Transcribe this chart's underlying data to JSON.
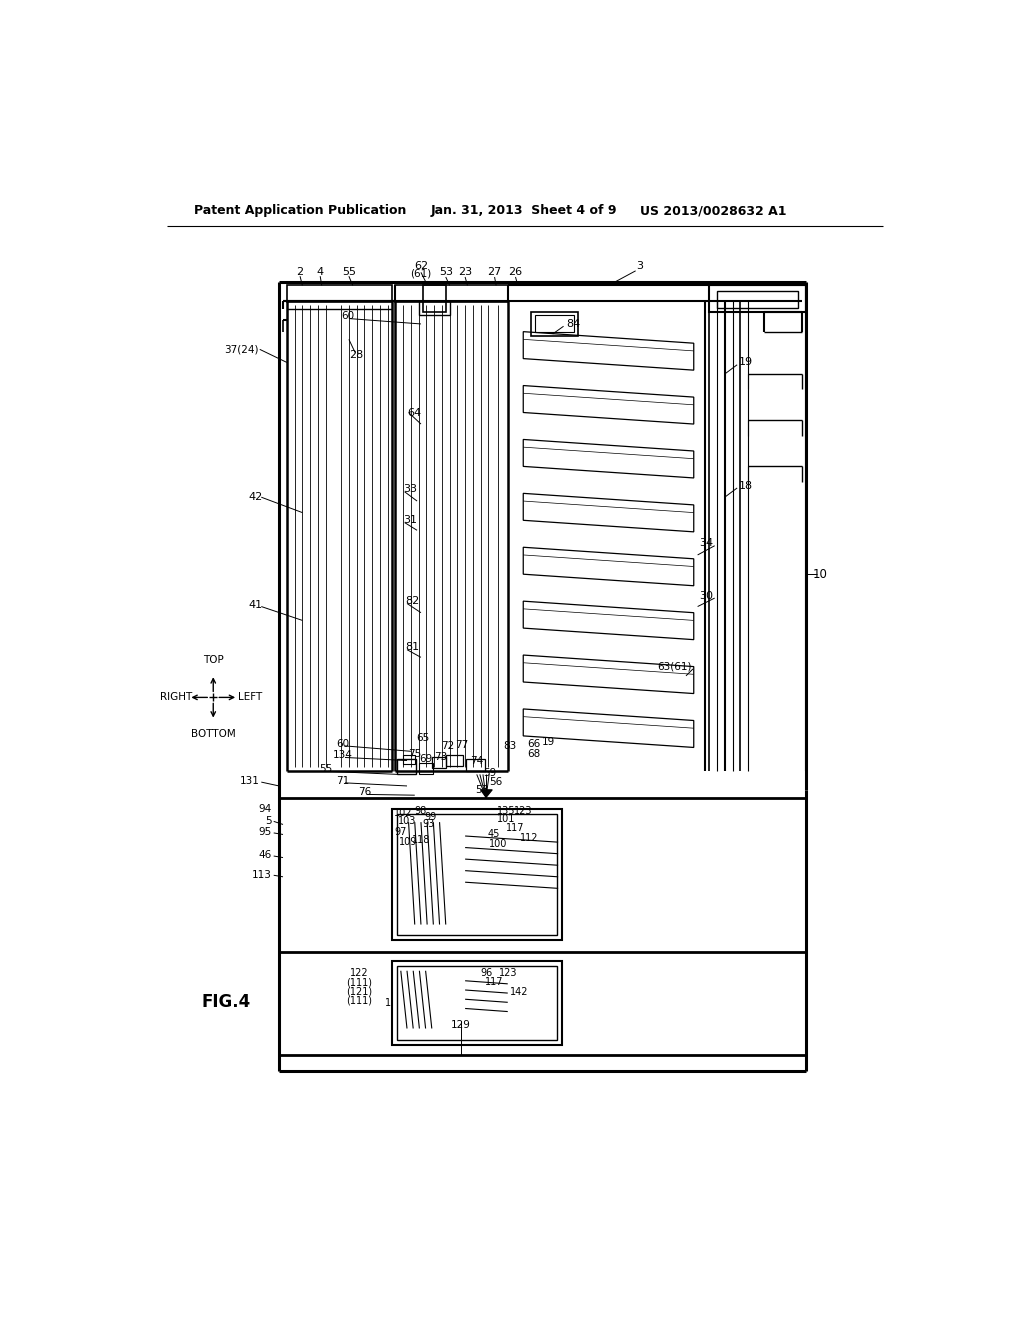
{
  "title_left": "Patent Application Publication",
  "title_center": "Jan. 31, 2013  Sheet 4 of 9",
  "title_right": "US 2013/0028632 A1",
  "fig_label": "FIG.4",
  "background_color": "#ffffff",
  "line_color": "#000000",
  "fig_width": 10.24,
  "fig_height": 13.2
}
